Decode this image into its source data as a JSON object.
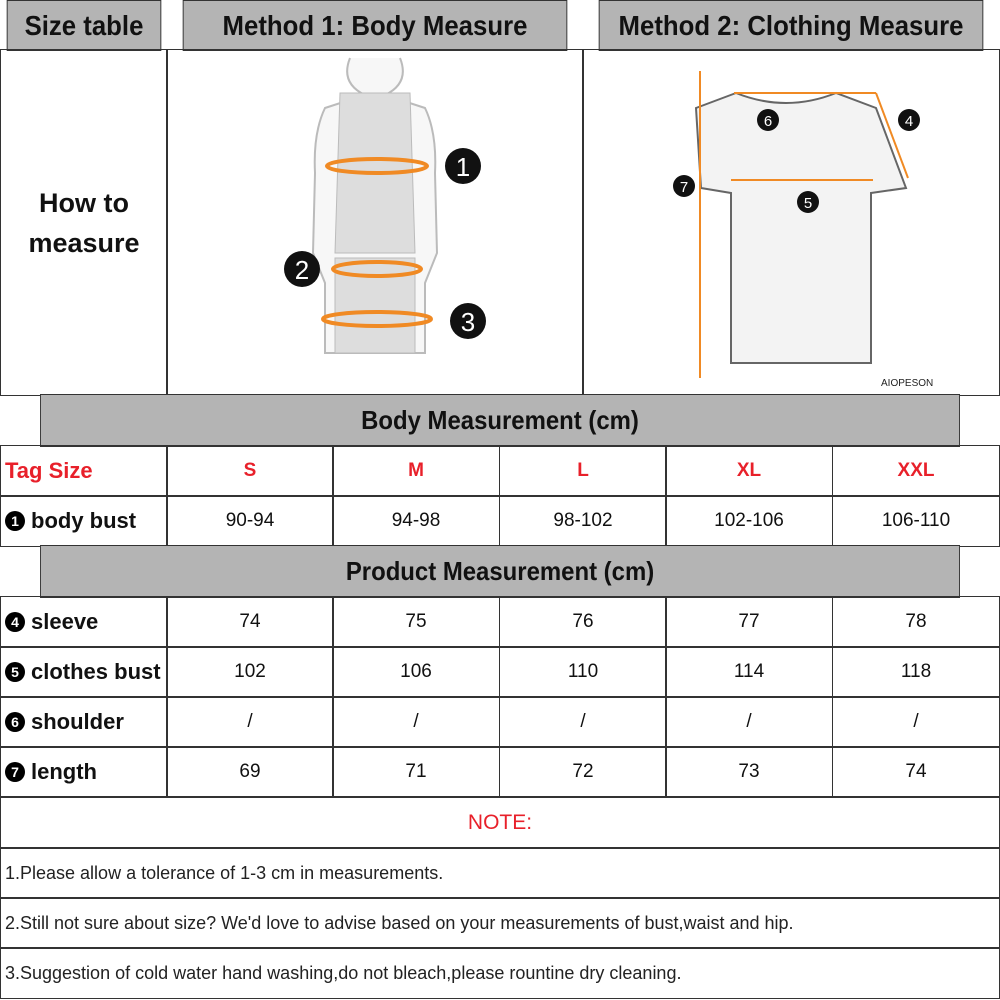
{
  "header": {
    "col1": "Size table",
    "col2": "Method 1: Body  Measure",
    "col3": "Method 2: Clothing Measure"
  },
  "how_to": "How to measure",
  "illustrations": {
    "body_markers": [
      "1",
      "2",
      "3"
    ],
    "shirt_markers": [
      "4",
      "5",
      "6",
      "7"
    ],
    "watermark": "AIOPESON",
    "accent_color": "#f08a24"
  },
  "body_section": {
    "title": "Body Measurement (cm)",
    "tag_label": "Tag Size",
    "sizes": [
      "S",
      "M",
      "L",
      "XL",
      "XXL"
    ],
    "rows": [
      {
        "num": "1",
        "label": "body bust",
        "values": [
          "90-94",
          "94-98",
          "98-102",
          "102-106",
          "106-110"
        ]
      }
    ]
  },
  "product_section": {
    "title": "Product Measurement (cm)",
    "rows": [
      {
        "num": "4",
        "label": "sleeve",
        "values": [
          "74",
          "75",
          "76",
          "77",
          "78"
        ]
      },
      {
        "num": "5",
        "label": "clothes bust",
        "values": [
          "102",
          "106",
          "110",
          "114",
          "118"
        ]
      },
      {
        "num": "6",
        "label": "shoulder",
        "values": [
          "/",
          "/",
          "/",
          "/",
          "/"
        ]
      },
      {
        "num": "7",
        "label": "length",
        "values": [
          "69",
          "71",
          "72",
          "73",
          "74"
        ]
      }
    ]
  },
  "notes": {
    "title": "NOTE:",
    "items": [
      "1.Please allow a tolerance of 1-3 cm in measurements.",
      "2.Still not sure about size? We'd love to advise based on your measurements of bust,waist and hip.",
      "3.Suggestion of cold water hand washing,do not bleach,please rountine dry cleaning."
    ]
  }
}
